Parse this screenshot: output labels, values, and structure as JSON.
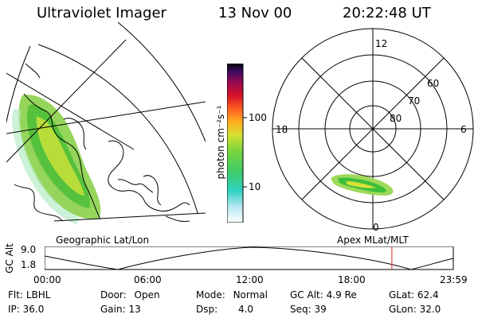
{
  "header": {
    "instrument": "Ultraviolet Imager",
    "date": "13 Nov 00",
    "time": "20:22:48 UT"
  },
  "map_panel": {
    "caption": "Geographic Lat/Lon"
  },
  "polar_panel": {
    "caption": "Apex MLat/MLT",
    "mlt_labels": {
      "top": "12",
      "left": "18",
      "right": "6",
      "bottom": "0"
    },
    "lat_labels": [
      "60",
      "70",
      "80"
    ]
  },
  "colorbar": {
    "unit_label": "photon cm⁻²s⁻¹",
    "ticks": [
      "100",
      "10"
    ],
    "scale": "log"
  },
  "altitude_plot": {
    "ylabel": "GC Alt",
    "y_ticks": [
      "9.0",
      "1.8"
    ],
    "x_ticks": [
      "00:00",
      "06:00",
      "12:00",
      "18:00",
      "23:59"
    ],
    "current_time_marker": "20:22:48",
    "marker_color": "#dd2222"
  },
  "info": {
    "flt": {
      "label": "Flt:",
      "value": "LBHL"
    },
    "ip": {
      "label": "IP:",
      "value": "36.0"
    },
    "door": {
      "label": "Door:",
      "value": "Open"
    },
    "gain": {
      "label": "Gain:",
      "value": "13"
    },
    "mode": {
      "label": "Mode:",
      "value": "Normal"
    },
    "dsp": {
      "label": "Dsp:",
      "value": "4.0"
    },
    "gcalt": {
      "label": "GC Alt:",
      "value": "4.9 Re"
    },
    "seq": {
      "label": "Seq:",
      "value": "39"
    },
    "glat": {
      "label": "GLat:",
      "value": "62.4"
    },
    "glon": {
      "label": "GLon:",
      "value": "32.0"
    }
  }
}
